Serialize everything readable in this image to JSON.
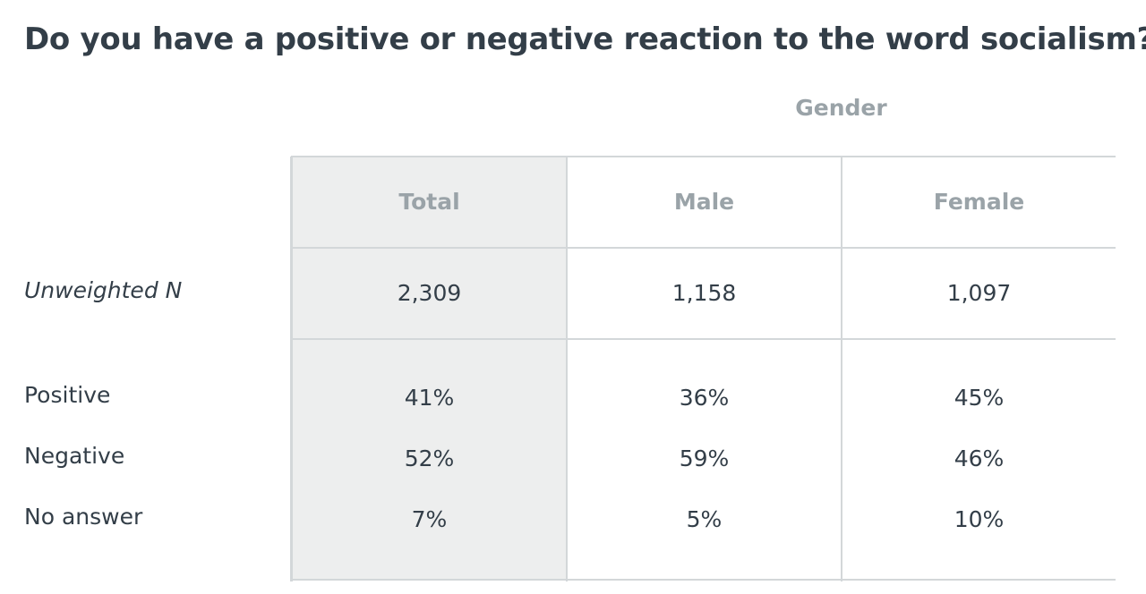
{
  "title": "Do you have a positive or negative reaction to the word socialism?",
  "table": {
    "group_header": "Gender",
    "columns": [
      "Total",
      "Male",
      "Female"
    ],
    "rows": [
      {
        "label": "Unweighted N",
        "cells": [
          "2,309",
          "1,158",
          "1,097"
        ]
      },
      {
        "label": "Positive",
        "cells": [
          "41%",
          "36%",
          "45%"
        ]
      },
      {
        "label": "Negative",
        "cells": [
          "52%",
          "59%",
          "46%"
        ]
      },
      {
        "label": "No answer",
        "cells": [
          "7%",
          "5%",
          "10%"
        ]
      }
    ]
  }
}
